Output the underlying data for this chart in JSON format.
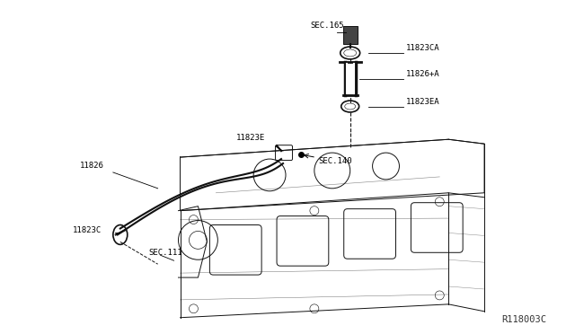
{
  "bg_color": "#ffffff",
  "engine_color": "#111111",
  "part_number_ref": "R118003C",
  "labels": {
    "sec165": "SEC.165",
    "11823CA": "11823CA",
    "11826A": "11826+A",
    "11823EA": "11823EA",
    "11826": "11826",
    "11823E": "11823E",
    "sec140": "SEC.140",
    "sec111": "SEC.111",
    "11823C": "11823C"
  },
  "font_size": 6.5,
  "line_width": 0.7
}
